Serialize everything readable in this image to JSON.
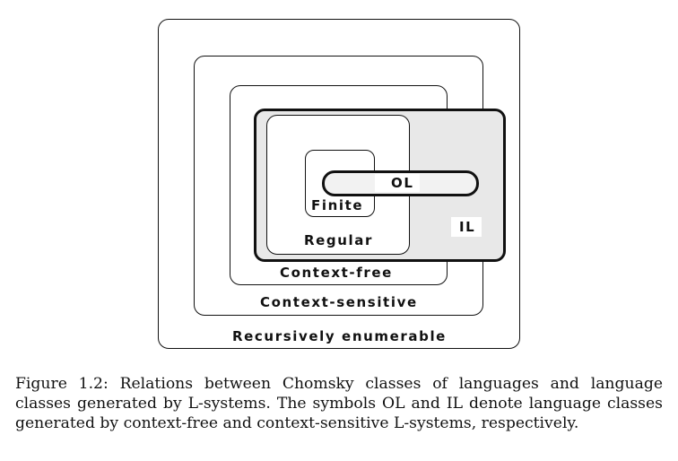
{
  "figure": {
    "labels": {
      "recursively_enumerable": "Recursively enumerable",
      "context_sensitive": "Context-sensitive",
      "context_free": "Context-free",
      "regular": "Regular",
      "finite": "Finite",
      "ol": "OL",
      "il": "IL"
    },
    "colors": {
      "il_fill": "#e8e8e8",
      "border": "#111111",
      "background": "#ffffff"
    }
  },
  "caption": "Figure 1.2: Relations between Chomsky classes of languages and language classes generated by L-systems. The symbols OL and IL denote language classes generated by context-free and context-sensitive L-systems, respectively."
}
